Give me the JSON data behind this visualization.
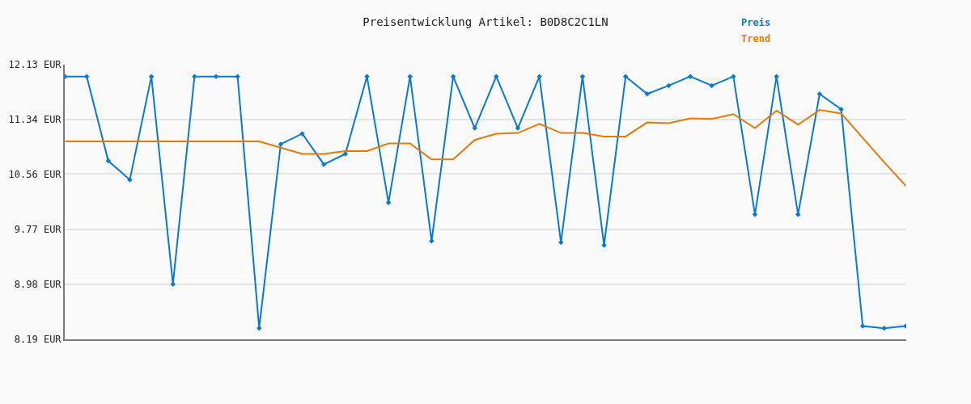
{
  "chart_data": {
    "type": "line",
    "title": "Preisentwicklung Artikel: B0D8C2C1LN",
    "categories": [
      null,
      null,
      null,
      null,
      null,
      null,
      null,
      null,
      null,
      null,
      null,
      null,
      null,
      null,
      null,
      null,
      null,
      null,
      null,
      null,
      null,
      null,
      null,
      null,
      null,
      null,
      null,
      null,
      null,
      null,
      null,
      null,
      null,
      null,
      null,
      null,
      null,
      null,
      null,
      null
    ],
    "series": [
      {
        "name": "Preis",
        "color": "#0a7acc",
        "marker": "diamond",
        "values": [
          11.96,
          11.96,
          10.75,
          10.48,
          11.96,
          8.98,
          11.96,
          11.96,
          11.96,
          8.35,
          10.99,
          11.14,
          10.7,
          10.85,
          11.96,
          10.15,
          11.96,
          9.6,
          11.96,
          11.22,
          11.96,
          11.22,
          11.96,
          9.58,
          11.96,
          9.54,
          11.96,
          11.71,
          11.83,
          11.96,
          11.83,
          11.96,
          9.98,
          11.96,
          9.98,
          11.71,
          11.49,
          8.38,
          8.35,
          8.38
        ]
      },
      {
        "name": "Trend",
        "color": "#e07b0c",
        "marker": "none",
        "values": [
          11.03,
          11.03,
          11.03,
          11.03,
          11.03,
          11.03,
          11.03,
          11.03,
          11.03,
          11.03,
          10.94,
          10.85,
          10.85,
          10.89,
          10.89,
          11.0,
          11.0,
          10.77,
          10.77,
          11.05,
          11.14,
          11.15,
          11.28,
          11.15,
          11.15,
          11.1,
          11.1,
          11.3,
          11.29,
          11.36,
          11.35,
          11.42,
          11.22,
          11.47,
          11.27,
          11.48,
          11.43,
          11.08,
          10.73,
          10.39
        ]
      }
    ],
    "ylim": [
      8.19,
      12.13
    ],
    "yticks": [
      {
        "value": 8.19,
        "label": "8.19 EUR"
      },
      {
        "value": 8.98,
        "label": "8.98 EUR"
      },
      {
        "value": 9.77,
        "label": "9.77 EUR"
      },
      {
        "value": 10.56,
        "label": "10.56 EUR"
      },
      {
        "value": 11.34,
        "label": "11.34 EUR"
      },
      {
        "value": 12.13,
        "label": "12.13 EUR"
      }
    ],
    "tick_labels": "y",
    "grid": "y",
    "legend": "top right",
    "line_style": "solid"
  }
}
